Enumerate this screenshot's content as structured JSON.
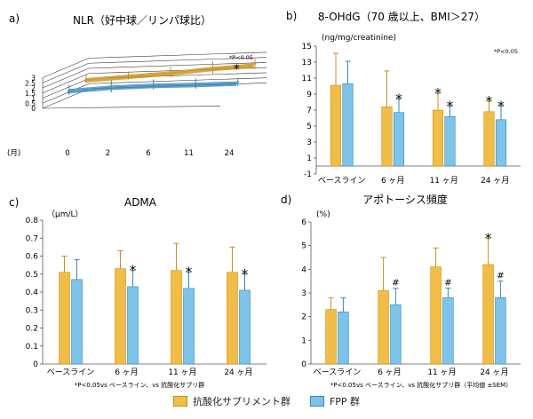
{
  "colors": {
    "supplement": "#f2bd44",
    "fpp": "#7cc4ea",
    "supplement_edge": "#c8901c",
    "fpp_edge": "#3a86b6",
    "axis": "#555555"
  },
  "legend": {
    "supplement": "抗酸化サプリメント群",
    "fpp": "FPP 群"
  },
  "chart_data": [
    {
      "panel": "a)",
      "type": "line",
      "title": "NLR（好中球／リンパ球比）",
      "xlabel": "(月)",
      "x": [
        "0",
        "2",
        "6",
        "11",
        "24"
      ],
      "ylim": [
        0,
        3
      ],
      "yticks": [
        "0",
        "0.5",
        "1",
        "1.5",
        "2",
        "2.5",
        "3"
      ],
      "note": "*P<0.05",
      "series": [
        {
          "key": "supplement",
          "values": [
            1.3,
            1.5,
            1.7,
            2.0,
            2.2
          ],
          "err": [
            0.4,
            0.4,
            0.5,
            0.6,
            0.5
          ]
        },
        {
          "key": "fpp",
          "values": [
            1.0,
            1.2,
            1.25,
            1.2,
            1.2
          ],
          "err": [
            0.5,
            0.6,
            0.5,
            0.5,
            0.4
          ]
        }
      ],
      "markers": [
        {
          "x": "24",
          "text": "*"
        }
      ]
    },
    {
      "panel": "b)",
      "type": "bar",
      "title": "8-OHdG（70 歳以上、BMI＞27）",
      "ylabel": "(ng/mg/creatinine)",
      "note": "*P<0.05",
      "categories": [
        "ベースライン",
        "6 ヶ月",
        "11 ヶ月",
        "24 ヶ月"
      ],
      "ylim": [
        -1,
        15
      ],
      "yticks": [
        "-1",
        "1",
        "3",
        "5",
        "7",
        "9",
        "11",
        "13",
        "15"
      ],
      "series": [
        {
          "key": "supplement",
          "values": [
            10.1,
            7.4,
            7.0,
            6.8
          ],
          "err": [
            4.0,
            4.5,
            2.1,
            1.3
          ]
        },
        {
          "key": "fpp",
          "values": [
            10.3,
            6.7,
            6.2,
            5.8
          ],
          "err": [
            2.8,
            1.7,
            1.3,
            1.7
          ]
        }
      ],
      "markers": [
        {
          "cat": 1,
          "series": "fpp",
          "text": "*"
        },
        {
          "cat": 2,
          "series": "supplement",
          "text": "*"
        },
        {
          "cat": 2,
          "series": "fpp",
          "text": "*"
        },
        {
          "cat": 3,
          "series": "supplement",
          "text": "*"
        },
        {
          "cat": 3,
          "series": "fpp",
          "text": "*"
        }
      ]
    },
    {
      "panel": "c)",
      "type": "bar",
      "title": "ADMA",
      "ylabel": "（μm/L）",
      "footnote": "*P<0.05vs ベースライン、vs 抗酸化サプリ群",
      "categories": [
        "ベースライン",
        "6 ヶ月",
        "11 ヶ月",
        "24 ヶ月"
      ],
      "ylim": [
        0,
        0.8
      ],
      "yticks": [
        "0",
        "0.1",
        "0.2",
        "0.3",
        "0.4",
        "0.5",
        "0.6",
        "0.7",
        "0.8"
      ],
      "series": [
        {
          "key": "supplement",
          "values": [
            0.51,
            0.53,
            0.52,
            0.51
          ],
          "err": [
            0.09,
            0.1,
            0.15,
            0.14
          ]
        },
        {
          "key": "fpp",
          "values": [
            0.47,
            0.43,
            0.42,
            0.41
          ],
          "err": [
            0.11,
            0.09,
            0.09,
            0.09
          ]
        }
      ],
      "markers": [
        {
          "cat": 1,
          "series": "fpp",
          "text": "*"
        },
        {
          "cat": 2,
          "series": "fpp",
          "text": "*"
        },
        {
          "cat": 3,
          "series": "fpp",
          "text": "*"
        }
      ]
    },
    {
      "panel": "d)",
      "type": "bar",
      "title": "アポトーシス頻度",
      "ylabel": "(%)",
      "footnote": "*P<0.05vs ベースライン、vs 抗酸化サプリ群（平均値 ±SEM）",
      "categories": [
        "ベースライン",
        "6 ヶ月",
        "11 ヶ月",
        "24 ヶ月"
      ],
      "ylim": [
        0,
        6
      ],
      "yticks": [
        "0",
        "1",
        "2",
        "3",
        "4",
        "5",
        "6"
      ],
      "series": [
        {
          "key": "supplement",
          "values": [
            2.3,
            3.1,
            4.1,
            4.2
          ],
          "err": [
            0.5,
            1.4,
            0.8,
            1.1
          ]
        },
        {
          "key": "fpp",
          "values": [
            2.2,
            2.5,
            2.8,
            2.8
          ],
          "err": [
            0.6,
            0.7,
            0.4,
            0.7
          ]
        }
      ],
      "markers": [
        {
          "cat": 1,
          "series": "fpp",
          "text": "#"
        },
        {
          "cat": 2,
          "series": "fpp",
          "text": "#"
        },
        {
          "cat": 3,
          "series": "supplement",
          "text": "*"
        },
        {
          "cat": 3,
          "series": "fpp",
          "text": "#"
        }
      ]
    }
  ]
}
